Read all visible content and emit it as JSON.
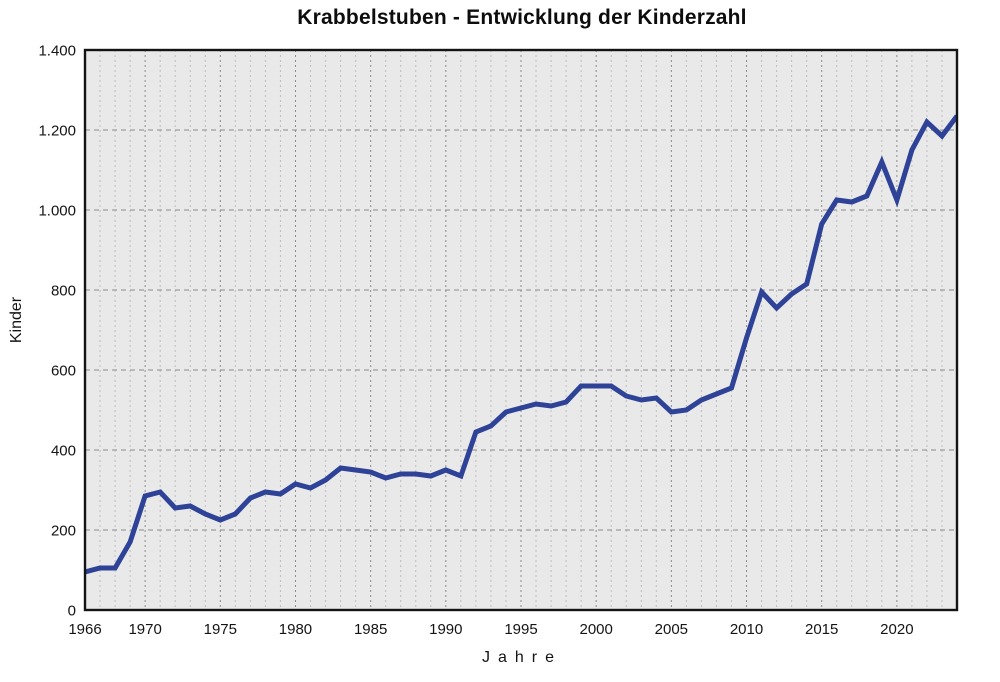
{
  "chart_data": {
    "type": "line",
    "title": "Krabbelstuben - Entwicklung der Kinderzahl",
    "xlabel": "Jahre",
    "ylabel": "Kinder",
    "xlim": [
      1966,
      2024
    ],
    "ylim": [
      0,
      1400
    ],
    "x_ticks": [
      1966,
      1970,
      1975,
      1980,
      1985,
      1990,
      1995,
      2000,
      2005,
      2010,
      2015,
      2020
    ],
    "x_tick_labels": [
      "1966",
      "1970",
      "1975",
      "1980",
      "1985",
      "1990",
      "1995",
      "2000",
      "2005",
      "2010",
      "2015",
      "2020"
    ],
    "y_ticks": [
      0,
      200,
      400,
      600,
      800,
      1000,
      1200,
      1400
    ],
    "y_tick_labels": [
      "0",
      "200",
      "400",
      "600",
      "800",
      "1.000",
      "1.200",
      "1.400"
    ],
    "grid": "dashed vertical per year, dashed horizontal per 200",
    "legend": "none",
    "series": [
      {
        "name": "Kinder",
        "x": [
          1966,
          1967,
          1968,
          1969,
          1970,
          1971,
          1972,
          1973,
          1974,
          1975,
          1976,
          1977,
          1978,
          1979,
          1980,
          1981,
          1982,
          1983,
          1984,
          1985,
          1986,
          1987,
          1988,
          1989,
          1990,
          1991,
          1992,
          1993,
          1994,
          1995,
          1996,
          1997,
          1998,
          1999,
          2000,
          2001,
          2002,
          2003,
          2004,
          2005,
          2006,
          2007,
          2008,
          2009,
          2010,
          2011,
          2012,
          2013,
          2014,
          2015,
          2016,
          2017,
          2018,
          2019,
          2020,
          2021,
          2022,
          2023,
          2024
        ],
        "values": [
          95,
          105,
          105,
          170,
          285,
          295,
          255,
          260,
          240,
          225,
          240,
          280,
          295,
          290,
          315,
          305,
          325,
          355,
          350,
          345,
          330,
          340,
          340,
          335,
          350,
          335,
          445,
          460,
          495,
          505,
          515,
          510,
          520,
          560,
          560,
          560,
          535,
          525,
          530,
          495,
          500,
          525,
          540,
          555,
          680,
          795,
          755,
          790,
          815,
          965,
          1025,
          1020,
          1035,
          1120,
          1025,
          1150,
          1220,
          1185,
          1235
        ]
      }
    ],
    "colors": {
      "line": "#2e4298",
      "plot_background": "#e9e9e9",
      "frame": "#141414",
      "grid_major": "#8c8c8c",
      "grid_minor": "#bdbdbd",
      "tick_text": "#141414"
    }
  }
}
